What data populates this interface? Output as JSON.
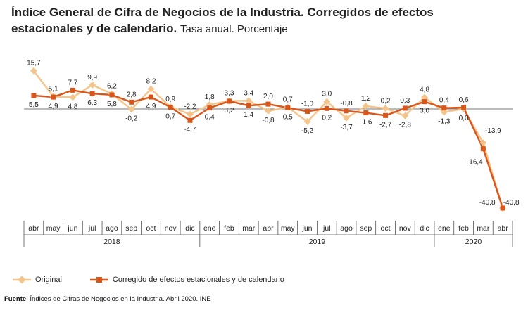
{
  "title": {
    "bold": "Índice General de Cifra de Negocios de la Industria. Corregidos de efectos estacionales y de calendario.",
    "normal": "Tasa anual. Porcentaje"
  },
  "legend": {
    "original": "Original",
    "corrected": "Corregido de efectos estacionales y de calendario"
  },
  "source": {
    "label": "Fuente",
    "text": ": Índices de Cifras de Negocios en la Industria. Abril 2020. INE"
  },
  "colors": {
    "original": "#F5C48A",
    "corrected": "#D9561A",
    "axis": "#555555"
  },
  "chart_data": {
    "type": "line",
    "categories": [
      "abr",
      "may",
      "jun",
      "jul",
      "ago",
      "sep",
      "oct",
      "nov",
      "dic",
      "ene",
      "feb",
      "mar",
      "abr",
      "may",
      "jun",
      "jul",
      "ago",
      "sep",
      "oct",
      "nov",
      "dic",
      "ene",
      "feb",
      "mar",
      "abr"
    ],
    "years": [
      {
        "label": "2018",
        "start": 0,
        "end": 8
      },
      {
        "label": "2019",
        "start": 9,
        "end": 20
      },
      {
        "label": "2020",
        "start": 21,
        "end": 24
      }
    ],
    "series": [
      {
        "name": "Original",
        "values": [
          15.7,
          5.1,
          4.8,
          9.9,
          6.2,
          -0.2,
          8.2,
          0.9,
          -2.2,
          1.8,
          3.3,
          3.4,
          -0.8,
          0.7,
          -5.2,
          3.0,
          -3.7,
          1.2,
          0.2,
          -2.8,
          4.8,
          -1.3,
          0.0,
          -13.9,
          -40.8
        ],
        "labels": [
          "15,7",
          "5,1",
          "4,8",
          "9,9",
          "6,2",
          "-0,2",
          "8,2",
          "0,9",
          "-2,2",
          "1,8",
          "3,3",
          "3,4",
          "-0,8",
          "0,7",
          "-5,2",
          "3,0",
          "-3,7",
          "1,2",
          "0,2",
          "-2,8",
          "4,8",
          "-1,3",
          "0,0",
          "-13,9",
          "-40,8"
        ]
      },
      {
        "name": "Corregido de efectos estacionales y de calendario",
        "values": [
          5.5,
          4.9,
          7.7,
          6.3,
          5.8,
          2.8,
          4.9,
          0.7,
          -4.7,
          0.4,
          3.2,
          1.4,
          2.0,
          0.5,
          -1.0,
          0.2,
          -0.8,
          -1.6,
          -2.7,
          0.3,
          3.0,
          0.4,
          0.6,
          -16.4,
          -40.8
        ],
        "labels": [
          "5,5",
          "4,9",
          "7,7",
          "6,3",
          "5,8",
          "2,8",
          "4,9",
          "0,7",
          "-4,7",
          "0,4",
          "3,2",
          "1,4",
          "2,0",
          "0,5",
          "-1,0",
          "0,2",
          "-0,8",
          "-1,6",
          "-2,7",
          "0,3",
          "3,0",
          "0,4",
          "0,6",
          "-16,4",
          "-40,8"
        ]
      }
    ],
    "ylim": [
      -42,
      18
    ]
  }
}
